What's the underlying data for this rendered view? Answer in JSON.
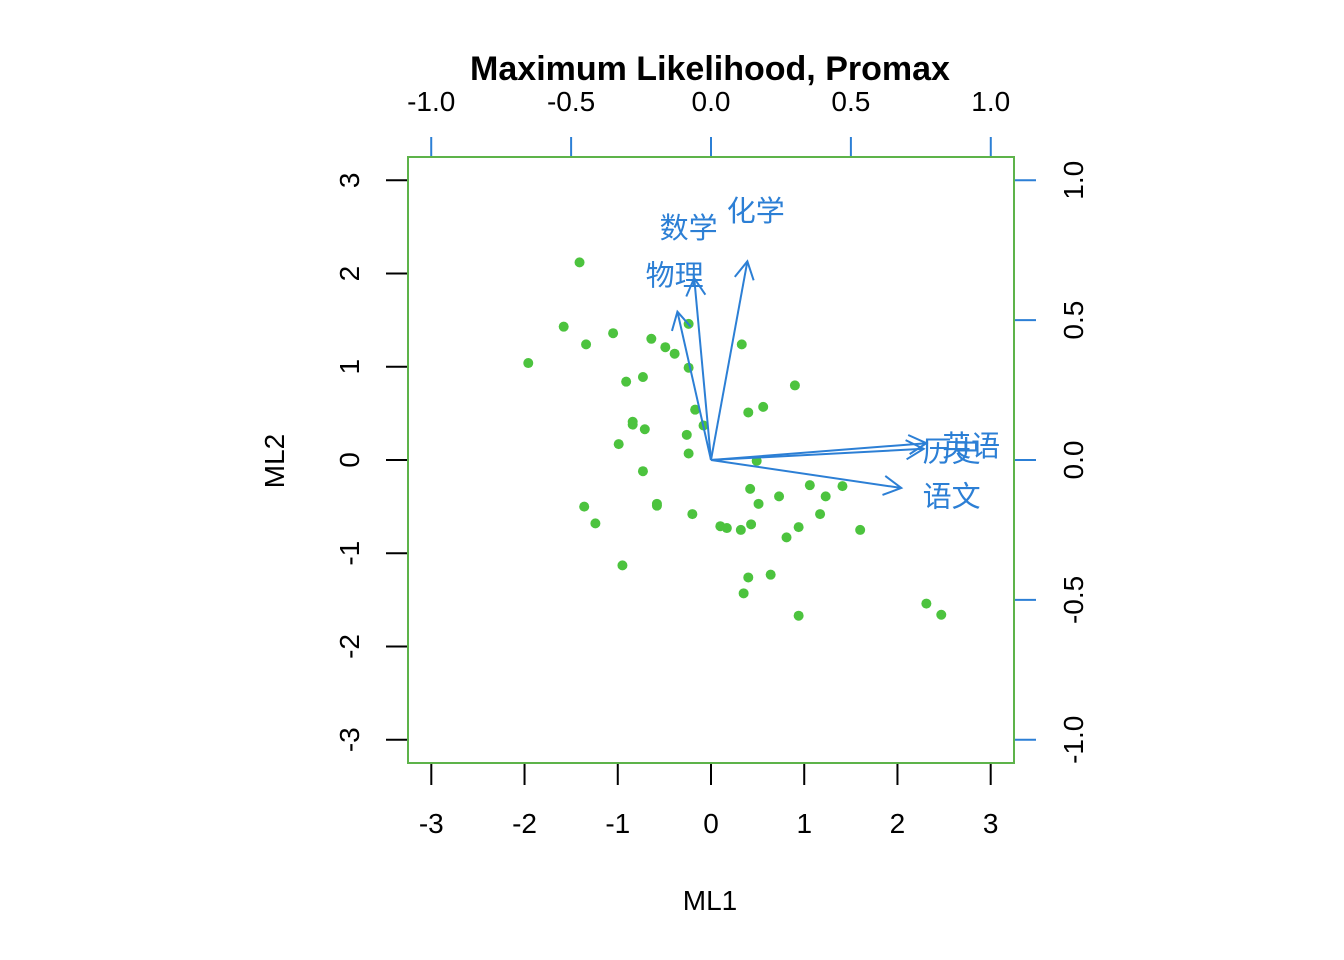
{
  "chart_data": {
    "type": "scatter",
    "subtype": "biplot",
    "title": "Maximum Likelihood, Promax",
    "xlabel": "ML1",
    "ylabel": "ML2",
    "score_axes": {
      "xlim": [
        -3.25,
        3.25
      ],
      "ylim": [
        -3.25,
        3.25
      ],
      "x_ticks": [
        -3,
        -2,
        -1,
        0,
        1,
        2,
        3
      ],
      "y_ticks": [
        -3,
        -2,
        -1,
        0,
        1,
        2,
        3
      ],
      "x_tick_labels": [
        "-3",
        "-2",
        "-1",
        "0",
        "1",
        "2",
        "3"
      ],
      "y_tick_labels": [
        "-3",
        "-2",
        "-1",
        "0",
        "1",
        "2",
        "3"
      ]
    },
    "loading_axes": {
      "lim": [
        -1.083,
        1.083
      ],
      "ticks": [
        -1.0,
        -0.5,
        0.0,
        0.5,
        1.0
      ],
      "tick_labels": [
        "-1.0",
        "-0.5",
        "0.0",
        "0.5",
        "1.0"
      ]
    },
    "points_color": "#4cc33e",
    "frame_color": "#5db34a",
    "arrow_color": "#2c7fd5",
    "points": [
      {
        "x": -1.41,
        "y": 2.12
      },
      {
        "x": -1.58,
        "y": 1.43
      },
      {
        "x": -1.34,
        "y": 1.24
      },
      {
        "x": -1.05,
        "y": 1.36
      },
      {
        "x": -0.64,
        "y": 1.3
      },
      {
        "x": -0.49,
        "y": 1.21
      },
      {
        "x": -0.39,
        "y": 1.14
      },
      {
        "x": -0.24,
        "y": 1.46
      },
      {
        "x": -1.96,
        "y": 1.04
      },
      {
        "x": -0.24,
        "y": 0.99
      },
      {
        "x": -0.91,
        "y": 0.84
      },
      {
        "x": -0.73,
        "y": 0.89
      },
      {
        "x": 0.33,
        "y": 1.24
      },
      {
        "x": 0.9,
        "y": 0.8
      },
      {
        "x": 0.56,
        "y": 0.57
      },
      {
        "x": 0.4,
        "y": 0.51
      },
      {
        "x": -0.17,
        "y": 0.54
      },
      {
        "x": -0.08,
        "y": 0.37
      },
      {
        "x": -0.84,
        "y": 0.41
      },
      {
        "x": -0.84,
        "y": 0.38
      },
      {
        "x": -0.71,
        "y": 0.33
      },
      {
        "x": -0.26,
        "y": 0.27
      },
      {
        "x": -0.99,
        "y": 0.17
      },
      {
        "x": -0.24,
        "y": 0.07
      },
      {
        "x": -0.73,
        "y": -0.12
      },
      {
        "x": 0.49,
        "y": -0.01
      },
      {
        "x": 0.42,
        "y": -0.31
      },
      {
        "x": 0.73,
        "y": -0.39
      },
      {
        "x": 1.06,
        "y": -0.27
      },
      {
        "x": 1.23,
        "y": -0.39
      },
      {
        "x": 1.41,
        "y": -0.28
      },
      {
        "x": -0.58,
        "y": -0.47
      },
      {
        "x": -0.58,
        "y": -0.49
      },
      {
        "x": 0.51,
        "y": -0.47
      },
      {
        "x": -1.36,
        "y": -0.5
      },
      {
        "x": -1.24,
        "y": -0.68
      },
      {
        "x": -0.2,
        "y": -0.58
      },
      {
        "x": 1.17,
        "y": -0.58
      },
      {
        "x": 0.1,
        "y": -0.71
      },
      {
        "x": 0.17,
        "y": -0.73
      },
      {
        "x": 0.32,
        "y": -0.75
      },
      {
        "x": 0.43,
        "y": -0.69
      },
      {
        "x": 0.94,
        "y": -0.72
      },
      {
        "x": 0.81,
        "y": -0.83
      },
      {
        "x": 1.6,
        "y": -0.75
      },
      {
        "x": -0.95,
        "y": -1.13
      },
      {
        "x": 0.4,
        "y": -1.26
      },
      {
        "x": 0.64,
        "y": -1.23
      },
      {
        "x": 0.35,
        "y": -1.43
      },
      {
        "x": 0.94,
        "y": -1.67
      },
      {
        "x": 2.31,
        "y": -1.54
      },
      {
        "x": 2.47,
        "y": -1.66
      }
    ],
    "loadings": [
      {
        "name": "数学",
        "x": -0.06,
        "y": 0.65,
        "label_x": -0.08,
        "label_y": 0.83
      },
      {
        "name": "化学",
        "x": 0.13,
        "y": 0.71,
        "label_x": 0.16,
        "label_y": 0.89
      },
      {
        "name": "物理",
        "x": -0.12,
        "y": 0.53,
        "label_x": -0.13,
        "label_y": 0.66
      },
      {
        "name": "英语",
        "x": 0.77,
        "y": 0.06,
        "label_x": 0.93,
        "label_y": 0.05
      },
      {
        "name": "历史",
        "x": 0.76,
        "y": 0.04,
        "label_x": 0.86,
        "label_y": 0.03
      },
      {
        "name": "语文",
        "x": 0.68,
        "y": -0.1,
        "label_x": 0.86,
        "label_y": -0.13
      }
    ]
  }
}
